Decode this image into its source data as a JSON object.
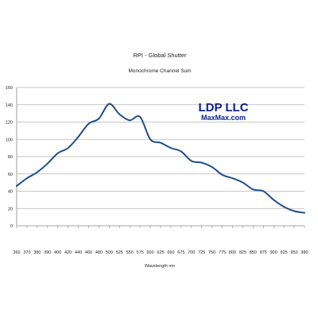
{
  "chart_data": {
    "type": "line",
    "title": "RPI - Global Shutter",
    "subtitle": "Monochrome Channel Sum",
    "xlabel": "Wavelength nm",
    "ylabel": "",
    "categories": [
      "360",
      "370",
      "380",
      "390",
      "400",
      "420",
      "440",
      "460",
      "480",
      "500",
      "525",
      "550",
      "575",
      "600",
      "625",
      "650",
      "675",
      "700",
      "725",
      "750",
      "775",
      "800",
      "825",
      "850",
      "875",
      "900",
      "925",
      "950",
      "980"
    ],
    "ylim": [
      0,
      160
    ],
    "yticks": [
      0,
      20,
      40,
      60,
      80,
      100,
      120,
      140,
      160
    ],
    "grid": true,
    "series": [
      {
        "color": "#1f4e8c",
        "points": [
          {
            "x": 360,
            "y": 46
          },
          {
            "x": 370,
            "y": 55
          },
          {
            "x": 380,
            "y": 62
          },
          {
            "x": 390,
            "y": 72
          },
          {
            "x": 400,
            "y": 84
          },
          {
            "x": 420,
            "y": 90
          },
          {
            "x": 440,
            "y": 103
          },
          {
            "x": 460,
            "y": 118
          },
          {
            "x": 480,
            "y": 124
          },
          {
            "x": 500,
            "y": 141
          },
          {
            "x": 525,
            "y": 129
          },
          {
            "x": 550,
            "y": 122
          },
          {
            "x": 575,
            "y": 126
          },
          {
            "x": 600,
            "y": 100
          },
          {
            "x": 625,
            "y": 96
          },
          {
            "x": 650,
            "y": 90
          },
          {
            "x": 675,
            "y": 86
          },
          {
            "x": 700,
            "y": 75
          },
          {
            "x": 725,
            "y": 73
          },
          {
            "x": 750,
            "y": 68
          },
          {
            "x": 775,
            "y": 59
          },
          {
            "x": 800,
            "y": 55
          },
          {
            "x": 825,
            "y": 50
          },
          {
            "x": 850,
            "y": 42
          },
          {
            "x": 875,
            "y": 40
          },
          {
            "x": 900,
            "y": 30
          },
          {
            "x": 925,
            "y": 22
          },
          {
            "x": 950,
            "y": 17
          },
          {
            "x": 980,
            "y": 15
          }
        ]
      }
    ]
  },
  "logo": {
    "name": "LDP LLC",
    "site": "MaxMax.com"
  }
}
